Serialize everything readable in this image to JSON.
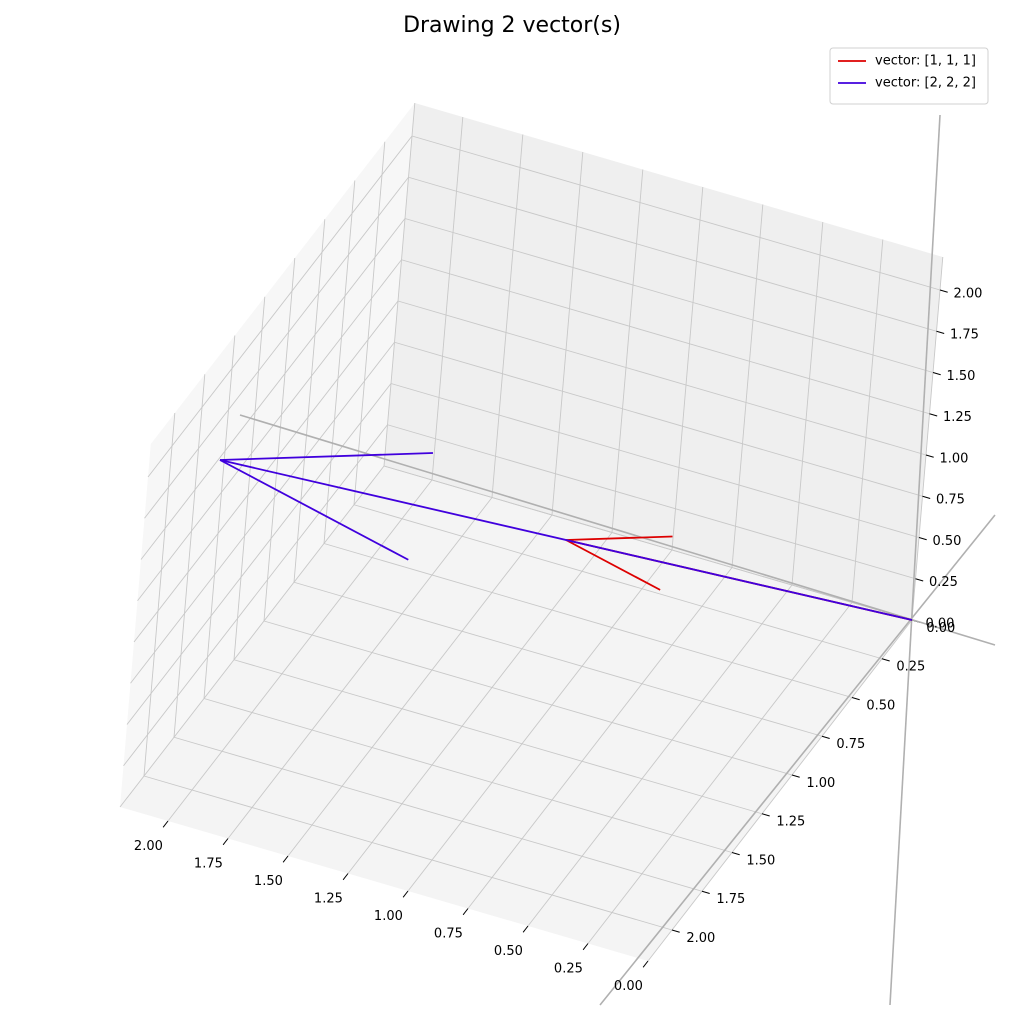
{
  "chart_data": {
    "type": "vector3d",
    "title": "Drawing 2 vector(s)",
    "series": [
      {
        "name": "vector: [1, 1, 1]",
        "color": "#dd0000",
        "values": [
          1,
          1,
          1
        ]
      },
      {
        "name": "vector: [2, 2, 2]",
        "color": "#4000dd",
        "values": [
          2,
          2,
          2
        ]
      }
    ],
    "xlim": [
      0,
      2.2
    ],
    "ylim": [
      0,
      2.2
    ],
    "zlim": [
      0,
      2.2
    ],
    "xticks": [
      {
        "value": 0,
        "label": "0.00"
      },
      0.25,
      {
        "value": 0.5,
        "label": "0.50"
      },
      0.75,
      {
        "value": 1,
        "label": "1.00"
      },
      1.25,
      {
        "value": 1.5,
        "label": "1.50"
      },
      1.75,
      {
        "value": 2,
        "label": "2.00"
      }
    ],
    "yticks": [
      {
        "value": 0,
        "label": "0.00"
      },
      0.25,
      {
        "value": 0.5,
        "label": "0.50"
      },
      0.75,
      {
        "value": 1,
        "label": "1.00"
      },
      1.25,
      {
        "value": 1.5,
        "label": "1.50"
      },
      1.75,
      {
        "value": 2,
        "label": "2.00"
      }
    ],
    "zticks": [
      {
        "value": 0,
        "label": "0.00"
      },
      0.25,
      {
        "value": 0.5,
        "label": "0.50"
      },
      0.75,
      {
        "value": 1,
        "label": "1.00"
      },
      1.25,
      {
        "value": 1.5,
        "label": "1.50"
      },
      1.75,
      {
        "value": 2,
        "label": "2.00"
      }
    ],
    "grid": true,
    "legend": "upper right"
  }
}
